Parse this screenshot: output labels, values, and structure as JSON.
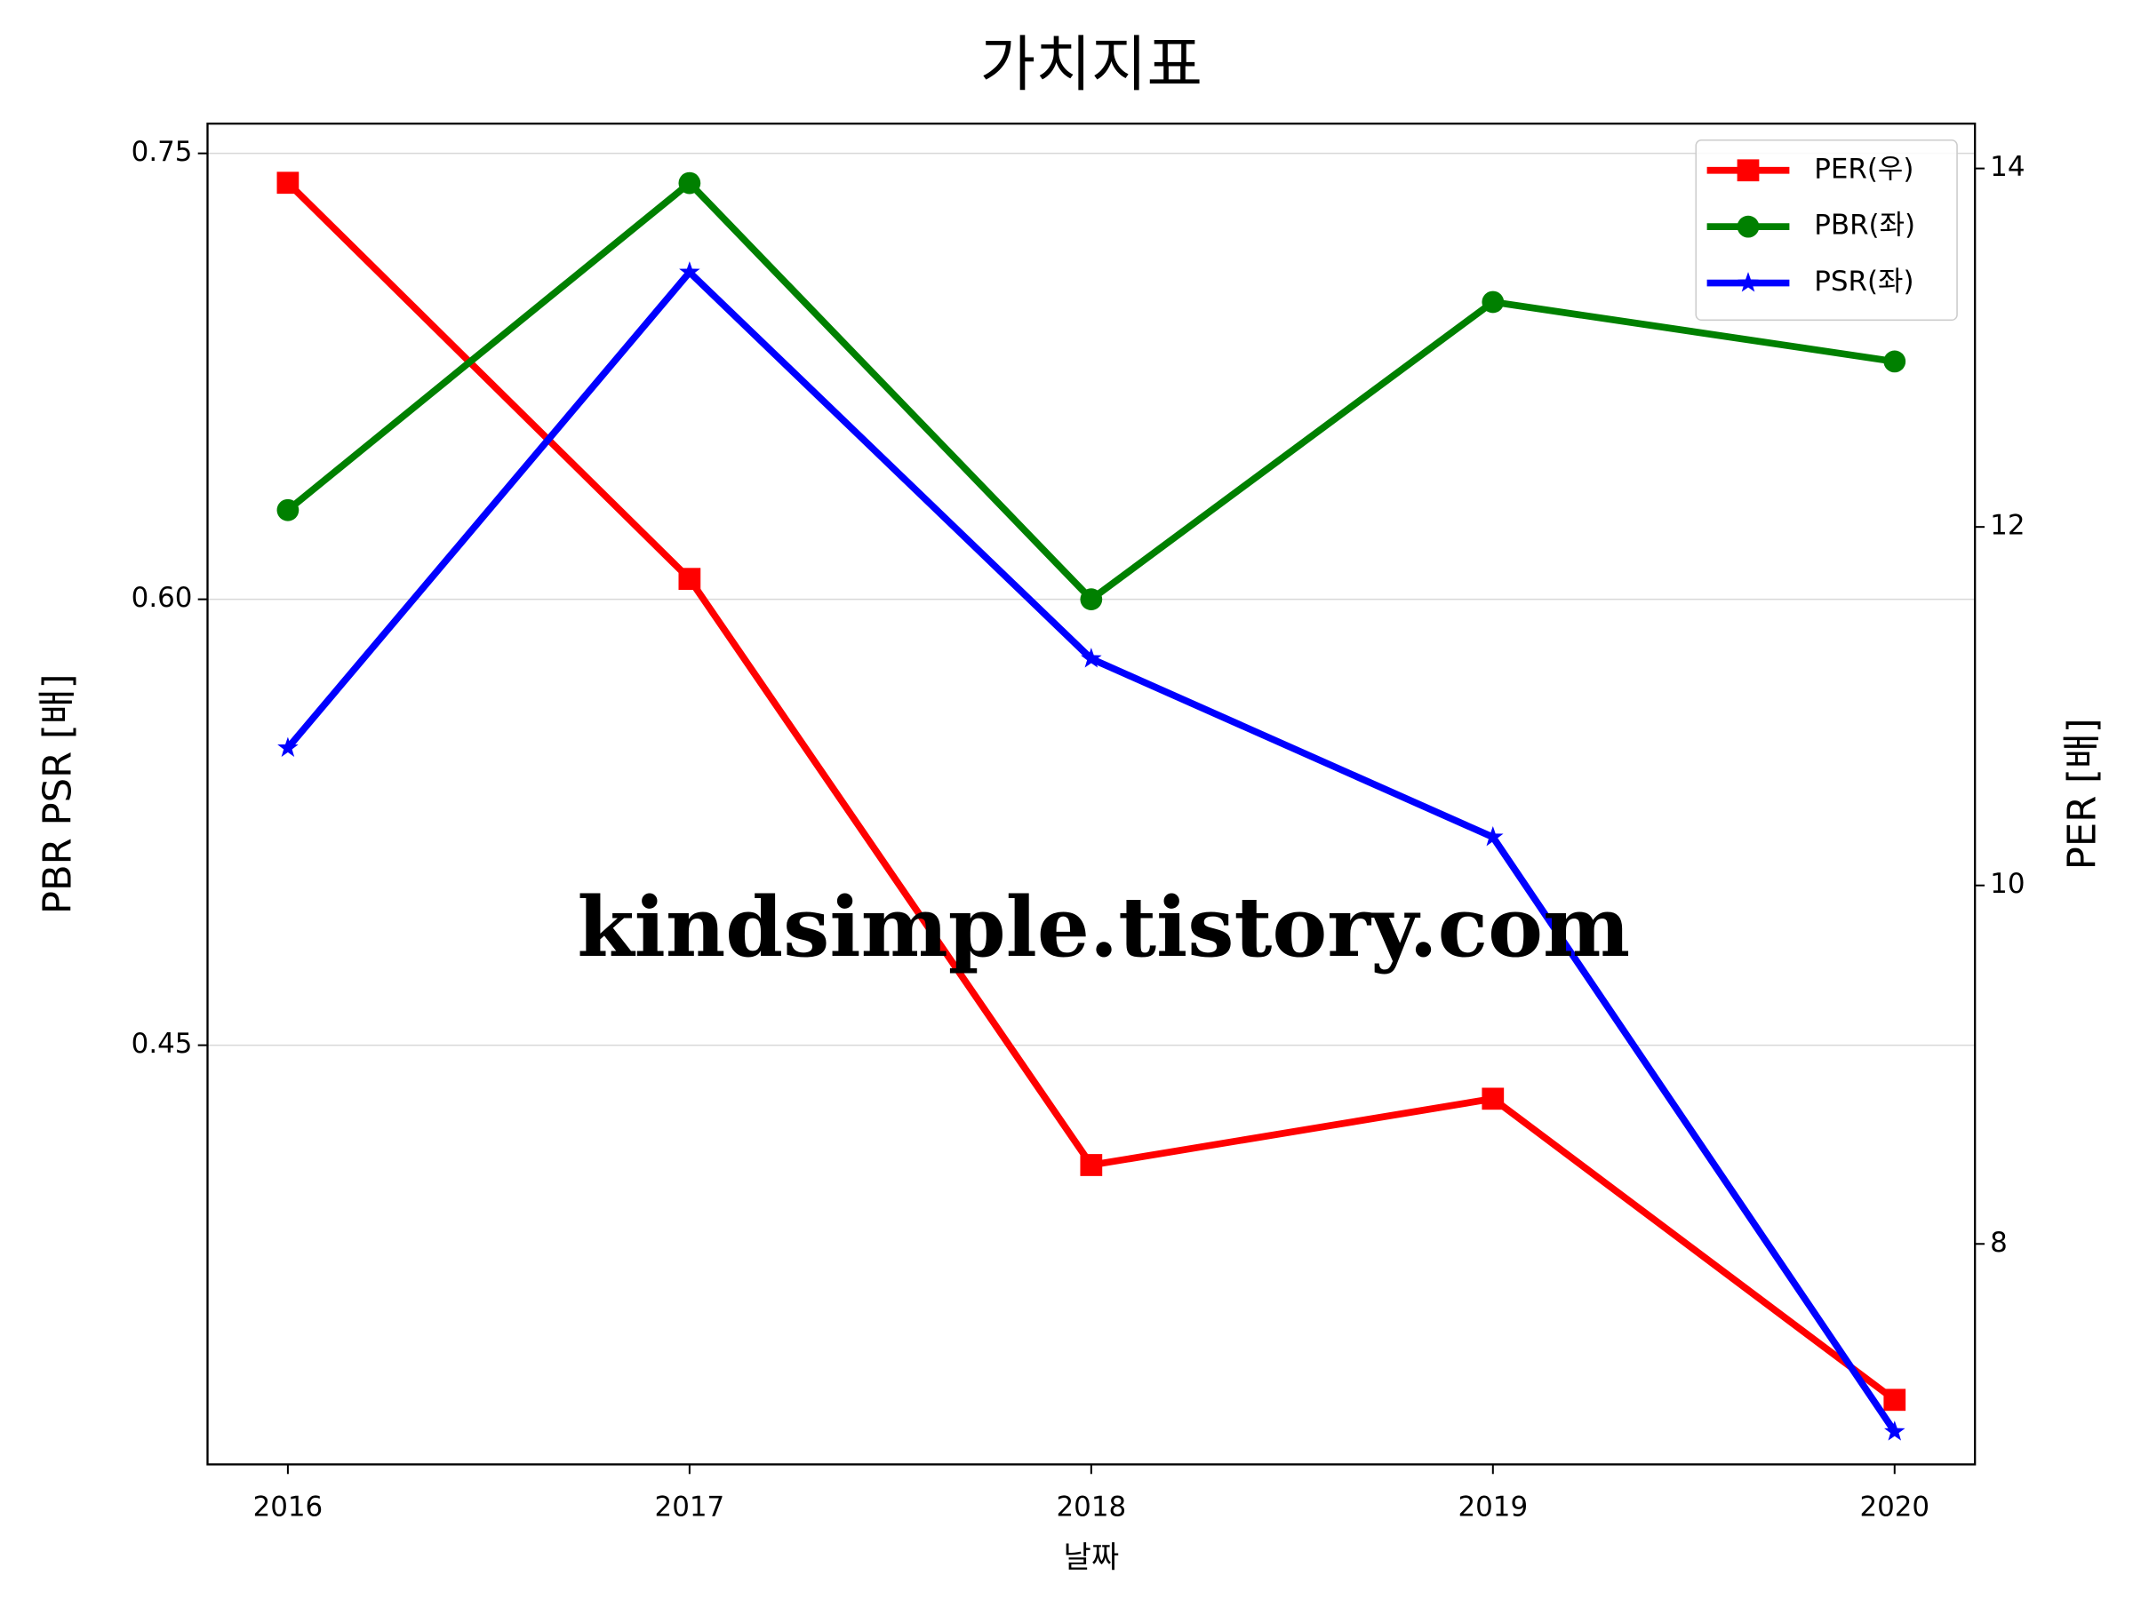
{
  "chart_data": {
    "type": "line",
    "title": "가치지표",
    "xlabel": "날짜",
    "ylabel": "PBR PSR [배]",
    "y2label": "PER [배]",
    "ylabel_color": "#008000",
    "y2label_color": "#ff0000",
    "x": [
      2016,
      2017,
      2018,
      2019,
      2020
    ],
    "xlim": [
      2015.8,
      2020.2
    ],
    "xticks": [
      2016,
      2017,
      2018,
      2019,
      2020
    ],
    "ylim": [
      0.309,
      0.76
    ],
    "yticks": [
      {
        "value": 0.45,
        "label": "0.45"
      },
      {
        "value": 0.6,
        "label": "0.60"
      },
      {
        "value": 0.75,
        "label": "0.75"
      }
    ],
    "y2lim": [
      6.77,
      14.25
    ],
    "y2ticks": [
      8,
      10,
      12,
      14
    ],
    "grid": true,
    "legend": "upper right",
    "annotation": "kindsimple.tistory.com",
    "series": [
      {
        "name": "PER(우)",
        "color": "#ff0000",
        "marker": "square",
        "axis": "y2",
        "values": [
          13.92,
          11.71,
          8.44,
          8.81,
          7.13
        ]
      },
      {
        "name": "PBR(좌)",
        "color": "#008000",
        "marker": "circle",
        "values": [
          0.63,
          0.74,
          0.6,
          0.7,
          0.68
        ]
      },
      {
        "name": "PSR(좌)",
        "color": "#0000ff",
        "marker": "star",
        "values": [
          0.55,
          0.71,
          0.58,
          0.52,
          0.32
        ]
      }
    ]
  }
}
